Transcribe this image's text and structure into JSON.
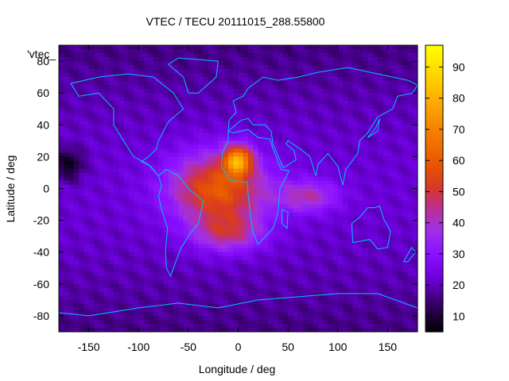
{
  "chart_data": {
    "type": "heatmap",
    "title": "VTEC / TECU 20111015_288.55800",
    "xlabel": "Longitude / deg",
    "ylabel": "Latitude / deg",
    "series_label": "'vtec_",
    "xlim": [
      -180,
      180
    ],
    "ylim": [
      -90,
      90
    ],
    "xticks": [
      -150,
      -100,
      -50,
      0,
      50,
      100,
      150
    ],
    "yticks": [
      -80,
      -60,
      -40,
      -20,
      0,
      20,
      40,
      60,
      80
    ],
    "colorbar": {
      "range": [
        5,
        97
      ],
      "ticks": [
        10,
        20,
        30,
        40,
        50,
        60,
        70,
        80,
        90
      ],
      "palette_stops": [
        {
          "v": 5,
          "color": "#000000"
        },
        {
          "v": 15,
          "color": "#3a0070"
        },
        {
          "v": 22,
          "color": "#6a00d8"
        },
        {
          "v": 30,
          "color": "#8a10ff"
        },
        {
          "v": 38,
          "color": "#a030e8"
        },
        {
          "v": 46,
          "color": "#c03080"
        },
        {
          "v": 52,
          "color": "#d83a20"
        },
        {
          "v": 60,
          "color": "#e85a00"
        },
        {
          "v": 72,
          "color": "#f88a00"
        },
        {
          "v": 85,
          "color": "#ffc800"
        },
        {
          "v": 97,
          "color": "#ffff00"
        }
      ]
    },
    "field": {
      "background_tecu": 20,
      "grid": {
        "dlon": 5,
        "dlat": 2.5
      },
      "features": [
        {
          "name": "subsolar-peak",
          "lon": 0,
          "lat": 18,
          "amp": 45,
          "slon": 14,
          "slat": 9
        },
        {
          "name": "equatorial-anomaly",
          "lon": -20,
          "lat": 0,
          "amp": 38,
          "slon": 48,
          "slat": 22
        },
        {
          "name": "southern-crest",
          "lon": -10,
          "lat": -28,
          "amp": 22,
          "slon": 35,
          "slat": 12
        },
        {
          "name": "indian-ocean-tongue",
          "lon": 70,
          "lat": -5,
          "amp": 20,
          "slon": 30,
          "slat": 10
        },
        {
          "name": "pacific-trough",
          "lon": -170,
          "lat": 15,
          "amp": -14,
          "slon": 15,
          "slat": 10
        }
      ]
    },
    "coastline_color": "#00bfff"
  }
}
